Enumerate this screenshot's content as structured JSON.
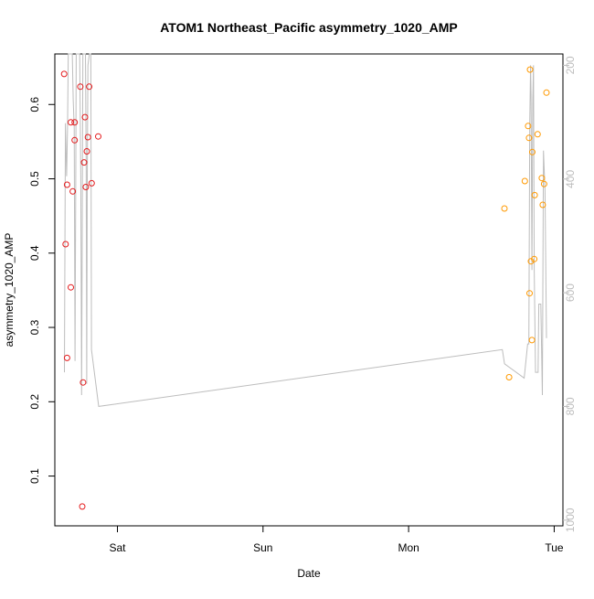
{
  "chart_data": {
    "type": "scatter",
    "title": "ATOM1 Northeast_Pacific asymmetry_1020_AMP",
    "xlabel": "Date",
    "ylabel": "asymmetry_1020_AMP",
    "x_ticks": [
      {
        "label": "Sat",
        "value": 1.0
      },
      {
        "label": "Sun",
        "value": 2.0
      },
      {
        "label": "Mon",
        "value": 3.0
      },
      {
        "label": "Tue",
        "value": 4.0
      }
    ],
    "xlim": [
      0.57,
      4.06
    ],
    "ylim": [
      0.033,
      0.668
    ],
    "y_ticks": [
      0.1,
      0.2,
      0.3,
      0.4,
      0.5,
      0.6
    ],
    "y2_ticks": [
      200,
      400,
      600,
      800,
      1000
    ],
    "y2lim": [
      1010,
      180
    ],
    "grid": false,
    "colors": {
      "series_red": "#e41a1c",
      "series_orange": "#ff9900",
      "line": "#bdbdbd",
      "right_axis": "#bdbdbd"
    },
    "series": [
      {
        "color": "#e41a1c",
        "points": [
          [
            0.634,
            0.641
          ],
          [
            0.644,
            0.412
          ],
          [
            0.654,
            0.492
          ],
          [
            0.654,
            0.259
          ],
          [
            0.68,
            0.576
          ],
          [
            0.68,
            0.354
          ],
          [
            0.693,
            0.483
          ],
          [
            0.706,
            0.552
          ],
          [
            0.706,
            0.576
          ],
          [
            0.745,
            0.624
          ],
          [
            0.758,
            0.059
          ],
          [
            0.764,
            0.226
          ],
          [
            0.771,
            0.522
          ],
          [
            0.777,
            0.583
          ],
          [
            0.783,
            0.489
          ],
          [
            0.79,
            0.537
          ],
          [
            0.797,
            0.556
          ],
          [
            0.806,
            0.624
          ],
          [
            0.823,
            0.494
          ],
          [
            0.868,
            0.557
          ]
        ]
      },
      {
        "color": "#ff9900",
        "points": [
          [
            3.658,
            0.46
          ],
          [
            3.69,
            0.233
          ],
          [
            3.798,
            0.497
          ],
          [
            3.821,
            0.571
          ],
          [
            3.827,
            0.555
          ],
          [
            3.831,
            0.346
          ],
          [
            3.834,
            0.647
          ],
          [
            3.84,
            0.389
          ],
          [
            3.847,
            0.283
          ],
          [
            3.85,
            0.536
          ],
          [
            3.863,
            0.392
          ],
          [
            3.866,
            0.478
          ],
          [
            3.886,
            0.56
          ],
          [
            3.915,
            0.501
          ],
          [
            3.921,
            0.465
          ],
          [
            3.931,
            0.493
          ],
          [
            3.947,
            0.616
          ]
        ]
      }
    ],
    "line_series": {
      "color": "#bdbdbd",
      "points": [
        [
          0.636,
          740
        ],
        [
          0.643,
          302
        ],
        [
          0.651,
          395
        ],
        [
          0.657,
          310
        ],
        [
          0.662,
          180
        ],
        [
          0.69,
          180
        ],
        [
          0.696,
          260
        ],
        [
          0.703,
          310
        ],
        [
          0.709,
          720
        ],
        [
          0.713,
          440
        ],
        [
          0.717,
          180
        ],
        [
          0.741,
          180
        ],
        [
          0.748,
          400
        ],
        [
          0.754,
          780
        ],
        [
          0.758,
          480
        ],
        [
          0.763,
          180
        ],
        [
          0.78,
          180
        ],
        [
          0.785,
          370
        ],
        [
          0.789,
          760
        ],
        [
          0.793,
          400
        ],
        [
          0.797,
          200
        ],
        [
          0.807,
          180
        ],
        [
          0.817,
          180
        ],
        [
          0.822,
          700
        ],
        [
          0.871,
          800
        ],
        [
          3.644,
          700
        ],
        [
          3.659,
          725
        ],
        [
          3.685,
          730
        ],
        [
          3.794,
          750
        ],
        [
          3.818,
          690
        ],
        [
          3.826,
          690
        ],
        [
          3.832,
          300
        ],
        [
          3.838,
          200
        ],
        [
          3.841,
          250
        ],
        [
          3.847,
          560
        ],
        [
          3.853,
          260
        ],
        [
          3.858,
          200
        ],
        [
          3.863,
          560
        ],
        [
          3.872,
          740
        ],
        [
          3.889,
          740
        ],
        [
          3.894,
          620
        ],
        [
          3.908,
          620
        ],
        [
          3.919,
          780
        ],
        [
          3.926,
          350
        ],
        [
          3.937,
          420
        ],
        [
          3.947,
          680
        ]
      ]
    }
  }
}
